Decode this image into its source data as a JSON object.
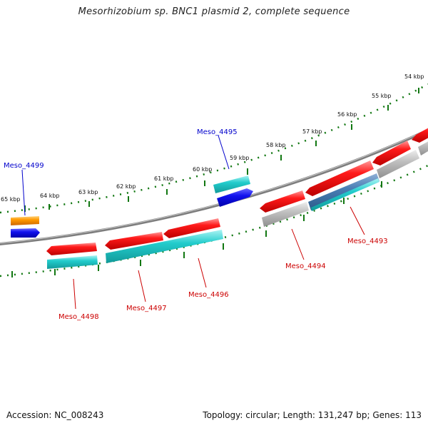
{
  "title": "Mesorhizobium sp. BNC1 plasmid 2, complete sequence",
  "footer": {
    "accession": "Accession: NC_008243",
    "summary": "Topology: circular; Length: 131,247 bp; Genes: 113"
  },
  "ticks": [
    "54 kbp",
    "55 kbp",
    "56 kbp",
    "57 kbp",
    "58 kbp",
    "59 kbp",
    "60 kbp",
    "61 kbp",
    "62 kbp",
    "63 kbp",
    "64 kbp",
    "65 kbp"
  ],
  "genes": {
    "meso_4499": "Meso_4499",
    "meso_4495": "Meso_4495",
    "meso_4498": "Meso_4498",
    "meso_4497": "Meso_4497",
    "meso_4496": "Meso_4496",
    "meso_4494": "Meso_4494",
    "meso_4493": "Meso_4493"
  },
  "colors": {
    "backbone": "#888888",
    "cds_red": "#ee1111",
    "cds_cyan": "#22cccc",
    "cds_blue": "#1111dd",
    "cds_orange": "#ff9900",
    "cds_gray": "#bbbbbb",
    "ticks": "#117711",
    "label_forward": "#0000cc",
    "label_reverse": "#cc0000"
  }
}
